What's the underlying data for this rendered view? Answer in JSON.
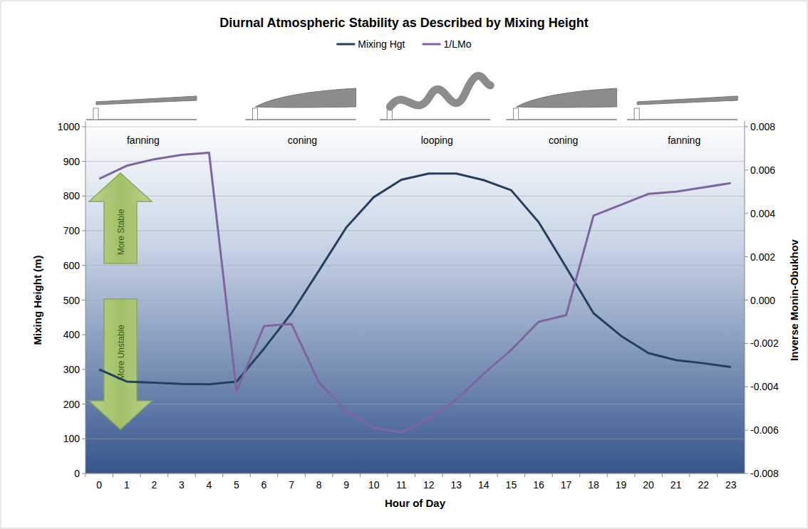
{
  "chart_data": {
    "type": "line",
    "title": "Diurnal Atmospheric Stability as Described by Mixing Height",
    "x_label": "Hour of Day",
    "y_label": "Mixing Height (m)",
    "y2_label": "Inverse Monin-Obukhov",
    "categories": [
      "0",
      "1",
      "2",
      "3",
      "4",
      "5",
      "6",
      "7",
      "8",
      "9",
      "10",
      "11",
      "12",
      "13",
      "14",
      "15",
      "16",
      "17",
      "18",
      "19",
      "20",
      "21",
      "22",
      "23"
    ],
    "series": [
      {
        "name": "Mixing Hgt",
        "color": "#243f60",
        "values": [
          300,
          265,
          262,
          258,
          257,
          265,
          360,
          462,
          585,
          710,
          797,
          847,
          865,
          865,
          846,
          817,
          725,
          595,
          462,
          397,
          347,
          327,
          318,
          307
        ]
      },
      {
        "name": "1/LMo",
        "color": "#8064a2",
        "axis": "y2",
        "values": [
          0.0056,
          0.0062,
          0.0065,
          0.0067,
          0.0068,
          -0.0042,
          -0.0012,
          -0.0011,
          -0.0038,
          -0.0051,
          -0.0059,
          -0.0061,
          -0.0055,
          -0.0046,
          -0.0034,
          -0.0023,
          -0.001,
          -0.0007,
          0.0039,
          0.0044,
          0.0049,
          0.005,
          0.0052,
          0.0054
        ]
      }
    ],
    "ylim": [
      0,
      1000
    ],
    "yticks": [
      0,
      100,
      200,
      300,
      400,
      500,
      600,
      700,
      800,
      900,
      1000
    ],
    "y2lim": [
      -0.008,
      0.008
    ],
    "y2ticks": [
      -0.008,
      -0.006,
      -0.004,
      -0.002,
      {
        "value": 0,
        "label": "0.000"
      },
      0.002,
      0.004,
      0.006,
      0.008
    ],
    "grid": true,
    "legend": "top",
    "annotations": [
      {
        "text": "fanning",
        "x": 1.6
      },
      {
        "text": "coning",
        "x": 7.4
      },
      {
        "text": "looping",
        "x": 12.3
      },
      {
        "text": "coning",
        "x": 16.9
      },
      {
        "text": "fanning",
        "x": 21.3
      }
    ],
    "arrows": [
      "More Stable",
      "More Unstable"
    ]
  }
}
